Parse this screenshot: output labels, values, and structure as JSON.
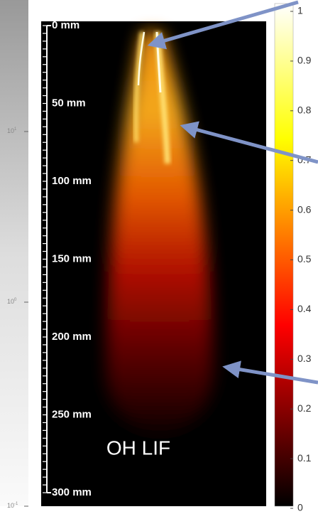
{
  "left_colorbar": {
    "labels": [
      {
        "base": "10",
        "exponent": "1"
      },
      {
        "base": "10",
        "exponent": "0"
      },
      {
        "base": "10",
        "exponent": "-1"
      }
    ]
  },
  "scale_bar": {
    "labels": [
      "0 mm",
      "50 mm",
      "100 mm",
      "150 mm",
      "200 mm",
      "250 mm",
      "300 mm"
    ]
  },
  "image_label": "OH LIF",
  "colorbar": {
    "range": [
      0,
      1
    ],
    "ticks": [
      0,
      0.1,
      0.2,
      0.3,
      0.4,
      0.5,
      0.6,
      0.7,
      0.8,
      0.9,
      1
    ]
  }
}
